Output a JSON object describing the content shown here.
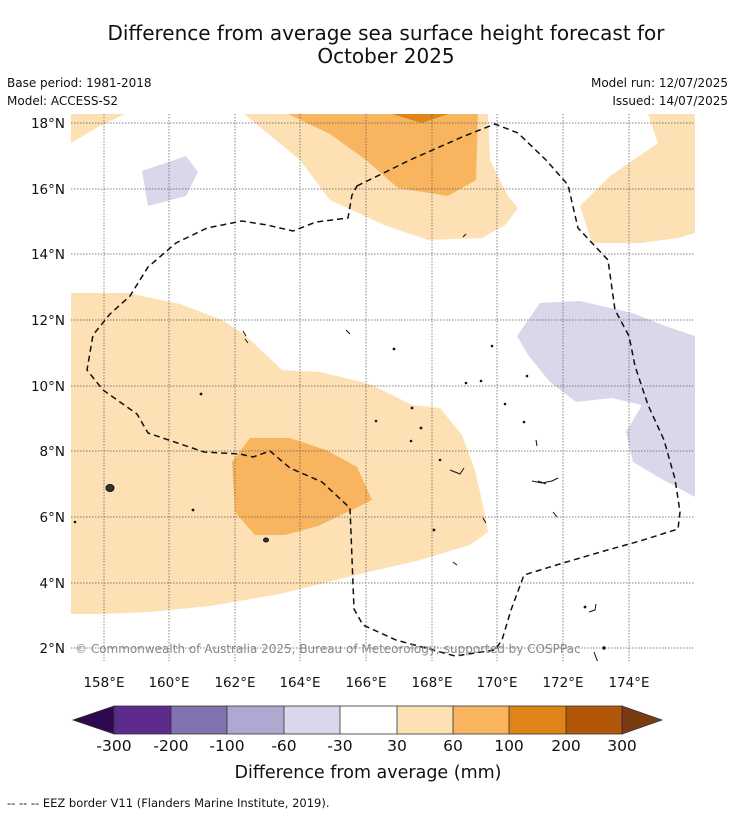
{
  "title_line1": "Difference from average sea surface height forecast for",
  "title_line2": "October 2025",
  "base_period": "Base period: 1981-2018",
  "model": "Model: ACCESS-S2",
  "model_run": "Model run: 12/07/2025",
  "issued": "Issued: 14/07/2025",
  "copyright": "© Commonwealth of Australia 2025, Bureau of Meteorology; supported by COSPPac",
  "footnote": "--  --  -- EEZ border V11 (Flanders Marine Institute, 2019).",
  "map": {
    "lon_ticks": [
      "158°E",
      "160°E",
      "162°E",
      "164°E",
      "166°E",
      "168°E",
      "170°E",
      "172°E",
      "174°E"
    ],
    "lat_ticks": [
      "18°N",
      "16°N",
      "14°N",
      "12°N",
      "10°N",
      "8°N",
      "6°N",
      "4°N",
      "2°N"
    ],
    "lon_range": [
      157,
      176
    ],
    "lat_range": [
      1.5,
      18.3
    ]
  },
  "colorbar": {
    "title": "Difference from average (mm)",
    "tick_labels": [
      "-300",
      "-200",
      "-100",
      "-60",
      "-30",
      "30",
      "60",
      "100",
      "200",
      "300"
    ],
    "colors": [
      "#5b2a8c",
      "#8273b0",
      "#b1a8d2",
      "#d8d8ea",
      "#ffffff",
      "#fde0b4",
      "#f9b45f",
      "#e08319",
      "#b2570a"
    ],
    "under_color": "#2d0a50",
    "over_color": "#7b3b10"
  }
}
